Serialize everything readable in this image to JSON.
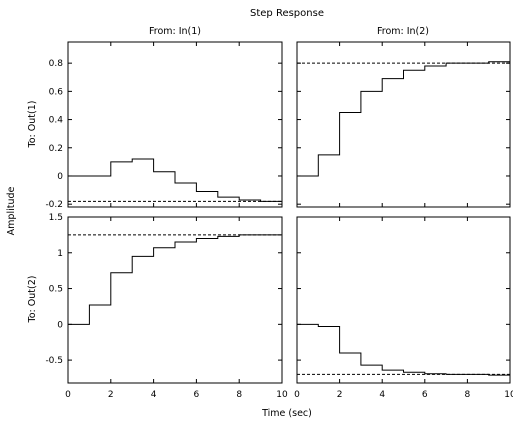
{
  "chart_data": {
    "type": "line",
    "title": "Step Response",
    "xlabel": "Time (sec)",
    "ylabel": "Amplitude",
    "column_titles": [
      "From: In(1)",
      "From: In(2)"
    ],
    "row_labels": [
      "To: Out(1)",
      "To: Out(2)"
    ],
    "xlim": [
      0,
      10
    ],
    "xticks": [
      0,
      2,
      4,
      6,
      8,
      10
    ],
    "rows": [
      {
        "ylim": [
          -0.22,
          0.95
        ],
        "yticks": [
          -0.2,
          0,
          0.2,
          0.4,
          0.6,
          0.8
        ]
      },
      {
        "ylim": [
          -0.82,
          1.5
        ],
        "yticks": [
          -0.5,
          0,
          0.5,
          1,
          1.5
        ]
      }
    ],
    "subplots": [
      {
        "row": 0,
        "col": 0,
        "t": [
          0,
          1,
          2,
          3,
          4,
          5,
          6,
          7,
          8,
          9,
          10
        ],
        "y": [
          0,
          0,
          0.1,
          0.12,
          0.03,
          -0.05,
          -0.11,
          -0.15,
          -0.17,
          -0.18,
          -0.18
        ],
        "steady_state": -0.18
      },
      {
        "row": 0,
        "col": 1,
        "t": [
          0,
          1,
          2,
          3,
          4,
          5,
          6,
          7,
          8,
          9,
          10
        ],
        "y": [
          0,
          0.15,
          0.45,
          0.6,
          0.69,
          0.75,
          0.78,
          0.8,
          0.8,
          0.81,
          0.81
        ],
        "steady_state": 0.8
      },
      {
        "row": 1,
        "col": 0,
        "t": [
          0,
          1,
          2,
          3,
          4,
          5,
          6,
          7,
          8,
          9,
          10
        ],
        "y": [
          0,
          0.27,
          0.72,
          0.95,
          1.07,
          1.15,
          1.2,
          1.23,
          1.25,
          1.25,
          1.25
        ],
        "steady_state": 1.25
      },
      {
        "row": 1,
        "col": 1,
        "t": [
          0,
          1,
          2,
          3,
          4,
          5,
          6,
          7,
          8,
          9,
          10
        ],
        "y": [
          0,
          -0.03,
          -0.4,
          -0.57,
          -0.64,
          -0.67,
          -0.69,
          -0.7,
          -0.7,
          -0.71,
          -0.71
        ],
        "steady_state": -0.7
      }
    ]
  }
}
